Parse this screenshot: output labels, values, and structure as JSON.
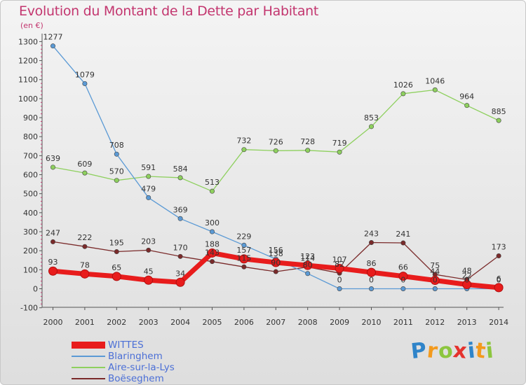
{
  "title": "Evolution du Montant de la Dette par Habitant",
  "unit_label": "(en €)",
  "logo": {
    "text": "Proxiti",
    "letters": [
      {
        "ch": "P",
        "color": "#2f84c9"
      },
      {
        "ch": "r",
        "color": "#f39a1d"
      },
      {
        "ch": "o",
        "color": "#8cc63f"
      },
      {
        "ch": "x",
        "color": "#e5322d"
      },
      {
        "ch": "i",
        "color": "#2f84c9"
      },
      {
        "ch": "t",
        "color": "#f39a1d"
      },
      {
        "ch": "i",
        "color": "#8cc63f"
      }
    ]
  },
  "chart_data": {
    "type": "line",
    "title": "Evolution du Montant de la Dette par Habitant",
    "ylabel": "(en €)",
    "xlabel": "",
    "x": [
      2000,
      2001,
      2002,
      2003,
      2004,
      2005,
      2006,
      2007,
      2008,
      2009,
      2010,
      2011,
      2012,
      2013,
      2014
    ],
    "ylim": [
      -100,
      1300
    ],
    "yticks": [
      -100,
      0,
      100,
      200,
      300,
      400,
      500,
      600,
      700,
      800,
      900,
      1000,
      1100,
      1200,
      1300
    ],
    "grid": false,
    "legend_position": "bottom-left",
    "series": [
      {
        "name": "WITTES",
        "color": "#e81c1c",
        "values": [
          93,
          78,
          65,
          45,
          34,
          188,
          157,
          138,
          123,
          107,
          86,
          66,
          44,
          22,
          6
        ],
        "labels": [
          "93",
          "78",
          "65",
          "45",
          "34",
          "188",
          "157",
          "138",
          "123",
          "107",
          "86",
          "66",
          "44",
          "22",
          "6"
        ]
      },
      {
        "name": "Blaringhem",
        "color": "#5b9ad5",
        "values": [
          1277,
          1079,
          708,
          479,
          369,
          300,
          229,
          156,
          80,
          0,
          0,
          0,
          0,
          0,
          0
        ],
        "labels": [
          "1277",
          "1079",
          "708",
          "479",
          "369",
          "300",
          "229",
          "156",
          "80",
          "0",
          "0",
          "0",
          "0",
          "0",
          "0"
        ]
      },
      {
        "name": "Aire-sur-la-Lys",
        "color": "#8ed05e",
        "values": [
          639,
          609,
          570,
          591,
          584,
          513,
          732,
          726,
          728,
          719,
          853,
          1026,
          1046,
          964,
          885
        ],
        "labels": [
          "639",
          "609",
          "570",
          "591",
          "584",
          "513",
          "732",
          "726",
          "728",
          "719",
          "853",
          "1026",
          "1046",
          "964",
          "885"
        ]
      },
      {
        "name": "Boëseghem",
        "color": "#7a2a2a",
        "values": [
          247,
          222,
          195,
          203,
          170,
          143,
          115,
          90,
          114,
          82,
          243,
          241,
          75,
          48,
          173
        ],
        "labels": [
          "247",
          "222",
          "195",
          "203",
          "170",
          "143",
          "115",
          "90",
          "114",
          "82",
          "243",
          "241",
          "75",
          "48",
          "173"
        ]
      }
    ]
  }
}
